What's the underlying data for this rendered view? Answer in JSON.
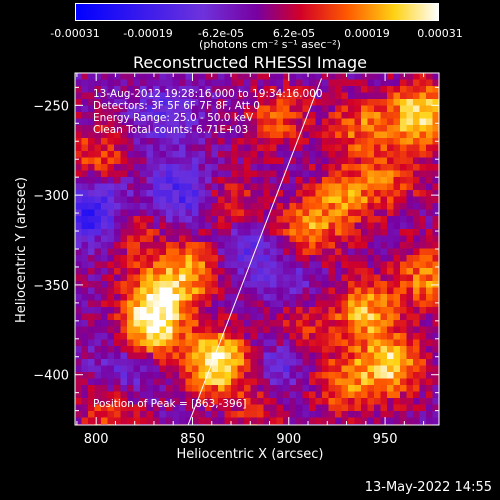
{
  "colorbar": {
    "tick_labels": [
      "-0.00031",
      "-0.00019",
      "-6.2e-05",
      "6.2e-05",
      "0.00019",
      "0.00031"
    ],
    "unit_label": "(photons cm⁻² s⁻¹ asec⁻²)",
    "range": [
      -0.00031,
      0.00031
    ]
  },
  "chart_data": {
    "type": "heatmap",
    "title": "Reconstructed RHESSI Image",
    "xlabel": "Heliocentric X (arcsec)",
    "ylabel": "Heliocentric Y (arcsec)",
    "xlim": [
      789,
      978
    ],
    "ylim": [
      -428,
      -232
    ],
    "x_ticks": [
      800,
      850,
      900,
      950
    ],
    "y_ticks": [
      -250,
      -300,
      -350,
      -400
    ],
    "annotations": [
      "13-Aug-2012 19:28:16.000 to 19:34:16.000",
      "Detectors: 3F 5F 6F 7F 8F, Att 0",
      "Energy Range: 25.0 - 50.0 keV",
      "Clean    Total counts: 6.71E+03"
    ],
    "peak_label": "Position of Peak = [863,-396]",
    "peak": [
      863,
      -396
    ],
    "limb_line": [
      [
        847,
        -430
      ],
      [
        917,
        -235
      ]
    ],
    "hotspots": [
      {
        "x": 863,
        "y": -393,
        "intensity": 0.00031
      },
      {
        "x": 828,
        "y": -375,
        "intensity": 0.00026
      },
      {
        "x": 833,
        "y": -355,
        "intensity": 0.00022
      },
      {
        "x": 852,
        "y": -340,
        "intensity": 0.00018
      },
      {
        "x": 817,
        "y": -320,
        "intensity": 0.00014
      },
      {
        "x": 868,
        "y": -305,
        "intensity": 0.00013
      },
      {
        "x": 910,
        "y": -320,
        "intensity": 0.00019
      },
      {
        "x": 930,
        "y": -300,
        "intensity": 0.00017
      },
      {
        "x": 955,
        "y": -290,
        "intensity": 0.00012
      },
      {
        "x": 968,
        "y": -255,
        "intensity": 0.00026
      },
      {
        "x": 937,
        "y": -262,
        "intensity": 0.00015
      },
      {
        "x": 893,
        "y": -258,
        "intensity": 0.00014
      },
      {
        "x": 800,
        "y": -278,
        "intensity": 0.00013
      },
      {
        "x": 940,
        "y": -365,
        "intensity": 0.00021
      },
      {
        "x": 953,
        "y": -395,
        "intensity": 0.00024
      },
      {
        "x": 928,
        "y": -405,
        "intensity": 0.00016
      },
      {
        "x": 905,
        "y": -372,
        "intensity": 0.00011
      },
      {
        "x": 972,
        "y": -345,
        "intensity": 0.00018
      },
      {
        "x": 805,
        "y": -420,
        "intensity": 0.00012
      },
      {
        "x": 885,
        "y": -420,
        "intensity": 0.0001
      }
    ],
    "coldspots": [
      {
        "x": 800,
        "y": -310,
        "intensity": -0.00025
      },
      {
        "x": 845,
        "y": -300,
        "intensity": -0.00018
      },
      {
        "x": 875,
        "y": -330,
        "intensity": -0.00014
      },
      {
        "x": 835,
        "y": -255,
        "intensity": -0.00012
      },
      {
        "x": 900,
        "y": -345,
        "intensity": -0.0001
      },
      {
        "x": 815,
        "y": -395,
        "intensity": -0.00011
      },
      {
        "x": 895,
        "y": -395,
        "intensity": -0.00012
      }
    ]
  },
  "footer_timestamp": "13-May-2022 14:55"
}
